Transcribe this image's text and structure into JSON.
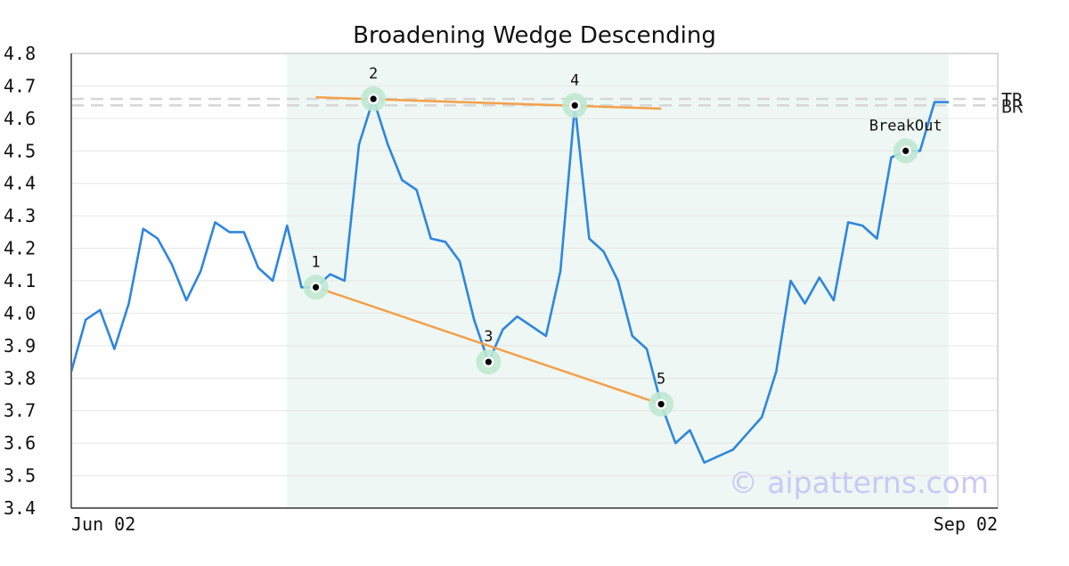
{
  "chart_data": {
    "type": "line",
    "title": "Broadening Wedge Descending",
    "xlabel": "",
    "ylabel": "",
    "ylim": [
      3.4,
      4.8
    ],
    "yticks": [
      "4.8",
      "4.7",
      "4.6",
      "4.5",
      "4.4",
      "4.3",
      "4.2",
      "4.1",
      "4.0",
      "3.9",
      "3.8",
      "3.7",
      "3.6",
      "3.5",
      "3.4"
    ],
    "xtick_labels": [
      {
        "index": 0,
        "label": "Jun 02"
      },
      {
        "index": 59,
        "label": "Sep 02"
      }
    ],
    "grid": true,
    "series": [
      {
        "color": "#2e86de",
        "values": [
          3.82,
          3.98,
          4.01,
          3.89,
          4.03,
          4.26,
          4.23,
          4.15,
          4.04,
          4.13,
          4.28,
          4.25,
          4.25,
          4.14,
          4.1,
          4.27,
          4.08,
          4.08,
          4.12,
          4.1,
          4.52,
          4.66,
          4.52,
          4.41,
          4.38,
          4.23,
          4.22,
          4.16,
          3.98,
          3.85,
          3.95,
          3.99,
          3.96,
          3.93,
          4.13,
          4.64,
          4.23,
          4.19,
          4.1,
          3.93,
          3.89,
          3.72,
          3.6,
          3.64,
          3.54,
          3.56,
          3.58,
          3.63,
          3.68,
          3.82,
          4.1,
          4.03,
          4.11,
          4.04,
          4.28,
          4.27,
          4.23,
          4.48,
          4.5,
          4.5,
          4.65,
          4.65
        ]
      }
    ],
    "pattern_region": {
      "start_index": 15,
      "end_index": 61,
      "color": "#eef7f3"
    },
    "pivot_points": [
      {
        "label": "1",
        "index": 17,
        "value": 4.08
      },
      {
        "label": "2",
        "index": 21,
        "value": 4.66
      },
      {
        "label": "3",
        "index": 29,
        "value": 3.85
      },
      {
        "label": "4",
        "index": 35,
        "value": 4.64
      },
      {
        "label": "5",
        "index": 41,
        "value": 3.72
      },
      {
        "label": "BreakOut",
        "index": 58,
        "value": 4.5
      }
    ],
    "trend_lines": [
      {
        "from": {
          "index": 17,
          "value": 4.665
        },
        "to": {
          "index": 41,
          "value": 4.63
        },
        "color": "#f4a04a"
      },
      {
        "from": {
          "index": 17,
          "value": 4.08
        },
        "to": {
          "index": 41,
          "value": 3.72
        },
        "color": "#f4a04a"
      }
    ],
    "levels": [
      {
        "label": "TR",
        "value": 4.66
      },
      {
        "label": "BR",
        "value": 4.64
      }
    ],
    "watermark": "© aipatterns.com"
  }
}
